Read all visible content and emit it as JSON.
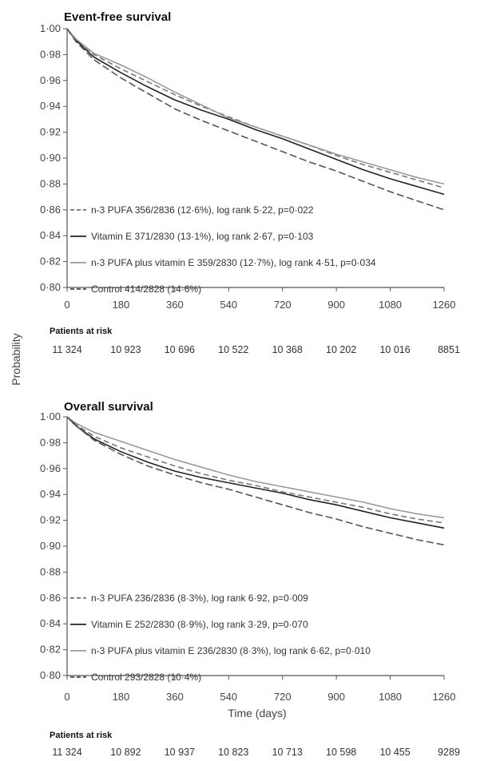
{
  "shared": {
    "ylabel": "Probability",
    "xlabel": "Time (days)",
    "risk_title": "Patients at risk"
  },
  "chart_data": [
    {
      "type": "line",
      "title": "Event-free survival",
      "xlim": [
        0,
        1260
      ],
      "ylim": [
        0.8,
        1.0
      ],
      "x_ticks": [
        0,
        180,
        360,
        540,
        720,
        900,
        1080,
        1260
      ],
      "x_tick_labels": [
        "0",
        "180",
        "360",
        "540",
        "720",
        "900",
        "1080",
        "1260"
      ],
      "y_ticks": [
        1.0,
        0.98,
        0.96,
        0.94,
        0.92,
        0.9,
        0.88,
        0.86,
        0.84,
        0.82,
        0.8
      ],
      "y_tick_labels": [
        "1·00",
        "0·98",
        "0·96",
        "0·94",
        "0·92",
        "0·90",
        "0·88",
        "0·86",
        "0·84",
        "0·82",
        "0·80"
      ],
      "legend": [
        "n-3 PUFA 356/2836 (12·6%), log rank 5·22, p=0·022",
        "Vitamin E 371/2830 (13·1%), log rank 2·67, p=0·103",
        "n-3 PUFA plus vitamin E 359/2830 (12·7%), log rank 4·51, p=0·034",
        "Control 414/2828 (14·6%)"
      ],
      "series": [
        {
          "name": "n-3 PUFA",
          "color": "#777777",
          "dash": "7,4",
          "x": [
            0,
            30,
            90,
            180,
            270,
            360,
            450,
            540,
            630,
            720,
            810,
            900,
            990,
            1080,
            1170,
            1260
          ],
          "y": [
            1.0,
            0.992,
            0.98,
            0.969,
            0.959,
            0.949,
            0.94,
            0.932,
            0.924,
            0.917,
            0.91,
            0.902,
            0.895,
            0.889,
            0.883,
            0.877
          ]
        },
        {
          "name": "Vitamin E",
          "color": "#222222",
          "dash": "none",
          "x": [
            0,
            30,
            90,
            180,
            270,
            360,
            450,
            540,
            630,
            720,
            810,
            900,
            990,
            1080,
            1170,
            1260
          ],
          "y": [
            1.0,
            0.991,
            0.978,
            0.966,
            0.955,
            0.945,
            0.937,
            0.93,
            0.922,
            0.915,
            0.907,
            0.899,
            0.891,
            0.884,
            0.878,
            0.872
          ]
        },
        {
          "name": "n-3 PUFA plus vitamin E",
          "color": "#999999",
          "dash": "none",
          "x": [
            0,
            30,
            90,
            180,
            270,
            360,
            450,
            540,
            630,
            720,
            810,
            900,
            990,
            1080,
            1170,
            1260
          ],
          "y": [
            1.0,
            0.992,
            0.981,
            0.972,
            0.962,
            0.951,
            0.941,
            0.931,
            0.924,
            0.917,
            0.91,
            0.903,
            0.897,
            0.891,
            0.885,
            0.88
          ]
        },
        {
          "name": "Control",
          "color": "#555555",
          "dash": "9,4",
          "x": [
            0,
            30,
            90,
            180,
            270,
            360,
            450,
            540,
            630,
            720,
            810,
            900,
            990,
            1080,
            1170,
            1260
          ],
          "y": [
            1.0,
            0.99,
            0.976,
            0.962,
            0.95,
            0.938,
            0.929,
            0.921,
            0.913,
            0.905,
            0.897,
            0.89,
            0.882,
            0.874,
            0.867,
            0.86
          ]
        }
      ],
      "risk_values": [
        "11 324",
        "10 923",
        "10 696",
        "10 522",
        "10 368",
        "10 202",
        "10 016",
        "8851"
      ]
    },
    {
      "type": "line",
      "title": "Overall survival",
      "xlim": [
        0,
        1260
      ],
      "ylim": [
        0.8,
        1.0
      ],
      "x_ticks": [
        0,
        180,
        360,
        540,
        720,
        900,
        1080,
        1260
      ],
      "x_tick_labels": [
        "0",
        "180",
        "360",
        "540",
        "720",
        "900",
        "1080",
        "1260"
      ],
      "y_ticks": [
        1.0,
        0.98,
        0.96,
        0.94,
        0.92,
        0.9,
        0.88,
        0.86,
        0.84,
        0.82,
        0.8
      ],
      "y_tick_labels": [
        "1·00",
        "0·98",
        "0·96",
        "0·94",
        "0·92",
        "0·90",
        "0·88",
        "0·86",
        "0·84",
        "0·82",
        "0·80"
      ],
      "legend": [
        "n-3 PUFA 236/2836 (8·3%), log rank 6·92, p=0·009",
        "Vitamin E 252/2830 (8·9%), log rank 3·29, p=0·070",
        "n-3 PUFA plus vitamin E 236/2830 (8·3%), log rank 6·62, p=0·010",
        "Control 293/2828 (10·4%)"
      ],
      "series": [
        {
          "name": "n-3 PUFA",
          "color": "#777777",
          "dash": "7,4",
          "x": [
            0,
            30,
            90,
            180,
            270,
            360,
            450,
            540,
            630,
            720,
            810,
            900,
            990,
            1080,
            1170,
            1260
          ],
          "y": [
            1.0,
            0.994,
            0.985,
            0.976,
            0.969,
            0.962,
            0.956,
            0.951,
            0.947,
            0.942,
            0.938,
            0.934,
            0.93,
            0.925,
            0.921,
            0.918
          ]
        },
        {
          "name": "Vitamin E",
          "color": "#222222",
          "dash": "none",
          "x": [
            0,
            30,
            90,
            180,
            270,
            360,
            450,
            540,
            630,
            720,
            810,
            900,
            990,
            1080,
            1170,
            1260
          ],
          "y": [
            1.0,
            0.993,
            0.983,
            0.973,
            0.965,
            0.958,
            0.953,
            0.949,
            0.945,
            0.941,
            0.936,
            0.932,
            0.927,
            0.922,
            0.918,
            0.914
          ]
        },
        {
          "name": "n-3 PUFA plus vitamin E",
          "color": "#999999",
          "dash": "none",
          "x": [
            0,
            30,
            90,
            180,
            270,
            360,
            450,
            540,
            630,
            720,
            810,
            900,
            990,
            1080,
            1170,
            1260
          ],
          "y": [
            1.0,
            0.995,
            0.988,
            0.981,
            0.974,
            0.967,
            0.961,
            0.955,
            0.95,
            0.946,
            0.942,
            0.938,
            0.934,
            0.929,
            0.925,
            0.922
          ]
        },
        {
          "name": "Control",
          "color": "#555555",
          "dash": "9,4",
          "x": [
            0,
            30,
            90,
            180,
            270,
            360,
            450,
            540,
            630,
            720,
            810,
            900,
            990,
            1080,
            1170,
            1260
          ],
          "y": [
            1.0,
            0.993,
            0.982,
            0.971,
            0.962,
            0.955,
            0.949,
            0.944,
            0.938,
            0.932,
            0.926,
            0.921,
            0.915,
            0.91,
            0.905,
            0.901
          ]
        }
      ],
      "risk_values": [
        "11 324",
        "10 892",
        "10 937",
        "10 823",
        "10 713",
        "10 598",
        "10 455",
        "9289"
      ]
    }
  ]
}
